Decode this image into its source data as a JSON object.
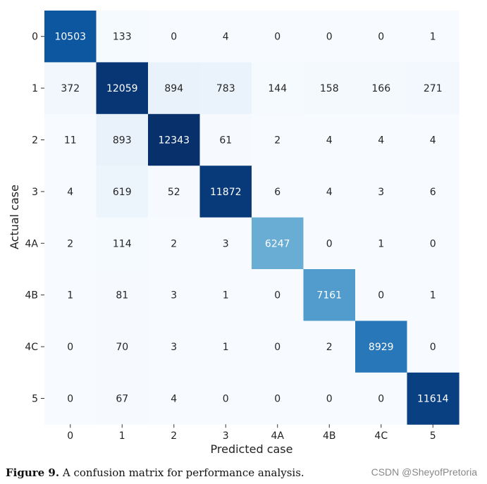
{
  "chart_data": {
    "type": "heatmap",
    "colormap": "Blues",
    "xlabel": "Predicted case",
    "ylabel": "Actual case",
    "x_categories": [
      "0",
      "1",
      "2",
      "3",
      "4A",
      "4B",
      "4C",
      "5"
    ],
    "y_categories": [
      "0",
      "1",
      "2",
      "3",
      "4A",
      "4B",
      "4C",
      "5"
    ],
    "matrix": [
      [
        10503,
        133,
        0,
        4,
        0,
        0,
        0,
        1
      ],
      [
        372,
        12059,
        894,
        783,
        144,
        158,
        166,
        271
      ],
      [
        11,
        893,
        12343,
        61,
        2,
        4,
        4,
        4
      ],
      [
        4,
        619,
        52,
        11872,
        6,
        4,
        3,
        6
      ],
      [
        2,
        114,
        2,
        3,
        6247,
        0,
        1,
        0
      ],
      [
        1,
        81,
        3,
        1,
        0,
        7161,
        0,
        1
      ],
      [
        0,
        70,
        3,
        1,
        0,
        2,
        8929,
        0
      ],
      [
        0,
        67,
        4,
        0,
        0,
        0,
        0,
        11614
      ]
    ],
    "value_range": [
      0,
      12343
    ],
    "colorbar": false
  },
  "caption": {
    "label": "Figure 9.",
    "text": " A confusion matrix for performance analysis."
  },
  "watermark": "CSDN @SheyofPretoria"
}
